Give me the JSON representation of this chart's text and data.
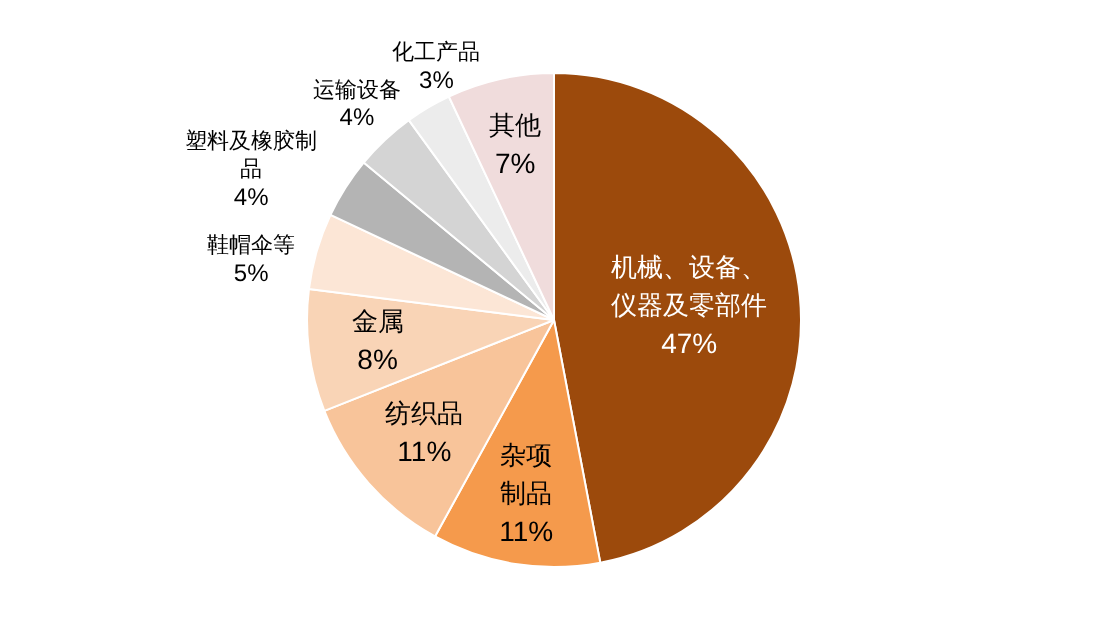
{
  "chart_data": {
    "type": "pie",
    "categories": [
      "机械、设备、仪器及零部件",
      "杂项制品",
      "纺织品",
      "金属",
      "鞋帽伞等",
      "塑料及橡胶制品",
      "运输设备",
      "化工产品",
      "其他"
    ],
    "values": [
      47,
      11,
      11,
      8,
      5,
      4,
      4,
      3,
      7
    ],
    "value_labels": [
      "47%",
      "11%",
      "11%",
      "8%",
      "5%",
      "4%",
      "4%",
      "3%",
      "7%"
    ],
    "colors": [
      "#9c4a0c",
      "#f59a4c",
      "#f8c49a",
      "#f9d4b6",
      "#fce6d6",
      "#b4b4b4",
      "#d4d4d4",
      "#ececec",
      "#f0dcdc"
    ],
    "legend": false
  }
}
